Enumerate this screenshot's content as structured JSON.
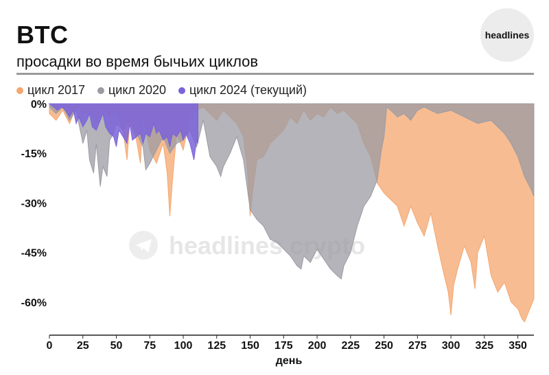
{
  "header": {
    "title": "BTC",
    "subtitle": "просадки во время бычьих циклов",
    "logo_text": "headlines"
  },
  "watermark": "headlines crypto",
  "legend": [
    {
      "label": "цикл 2017",
      "color": "#f4a66e"
    },
    {
      "label": "цикл 2020",
      "color": "#9b9ba3"
    },
    {
      "label": "цикл 2024 (текущий)",
      "color": "#7b63d9"
    }
  ],
  "chart_data": {
    "type": "area",
    "title": "BTC",
    "subtitle": "просадки во время бычьих циклов",
    "xlabel": "день",
    "ylabel": "",
    "xlim": [
      0,
      362
    ],
    "ylim": [
      -70,
      0
    ],
    "x_ticks": [
      0,
      25,
      50,
      75,
      100,
      125,
      150,
      175,
      200,
      225,
      250,
      275,
      300,
      325,
      350
    ],
    "y_ticks": [
      0,
      -15,
      -30,
      -45,
      -60
    ],
    "y_tick_labels": [
      "0%",
      "-15%",
      "-30%",
      "-45%",
      "-60%"
    ],
    "series": [
      {
        "name": "цикл 2017",
        "color": "#f4a66e",
        "points": [
          [
            0,
            -3
          ],
          [
            5,
            -5
          ],
          [
            10,
            -2
          ],
          [
            15,
            -6
          ],
          [
            20,
            -1
          ],
          [
            25,
            -3
          ],
          [
            30,
            -2
          ],
          [
            35,
            -6
          ],
          [
            40,
            -1
          ],
          [
            45,
            -4
          ],
          [
            50,
            -2
          ],
          [
            55,
            -8
          ],
          [
            58,
            -17
          ],
          [
            60,
            -6
          ],
          [
            65,
            -11
          ],
          [
            68,
            -18
          ],
          [
            70,
            -3
          ],
          [
            75,
            -14
          ],
          [
            80,
            -18
          ],
          [
            85,
            -12
          ],
          [
            88,
            -21
          ],
          [
            90,
            -34
          ],
          [
            92,
            -23
          ],
          [
            95,
            -9
          ],
          [
            100,
            -14
          ],
          [
            105,
            -4
          ],
          [
            110,
            -2
          ],
          [
            115,
            -1
          ],
          [
            120,
            -3
          ],
          [
            125,
            -5
          ],
          [
            130,
            -2
          ],
          [
            135,
            -4
          ],
          [
            140,
            -6
          ],
          [
            145,
            -10
          ],
          [
            148,
            -20
          ],
          [
            150,
            -34
          ],
          [
            152,
            -26
          ],
          [
            155,
            -17
          ],
          [
            160,
            -16
          ],
          [
            165,
            -12
          ],
          [
            170,
            -10
          ],
          [
            175,
            -8
          ],
          [
            180,
            -4
          ],
          [
            185,
            -6
          ],
          [
            190,
            -2
          ],
          [
            195,
            -5
          ],
          [
            200,
            -3
          ],
          [
            205,
            -4
          ],
          [
            210,
            -1
          ],
          [
            215,
            -3
          ],
          [
            220,
            -2
          ],
          [
            225,
            -4
          ],
          [
            230,
            -6
          ],
          [
            235,
            -12
          ],
          [
            240,
            -16
          ],
          [
            245,
            -24
          ],
          [
            250,
            -27
          ],
          [
            255,
            -29
          ],
          [
            260,
            -31
          ],
          [
            265,
            -37
          ],
          [
            270,
            -31
          ],
          [
            275,
            -36
          ],
          [
            280,
            -40
          ],
          [
            285,
            -33
          ],
          [
            290,
            -43
          ],
          [
            295,
            -52
          ],
          [
            298,
            -57
          ],
          [
            300,
            -64
          ],
          [
            302,
            -55
          ],
          [
            305,
            -50
          ],
          [
            310,
            -43
          ],
          [
            315,
            -48
          ],
          [
            318,
            -56
          ],
          [
            320,
            -45
          ],
          [
            325,
            -40
          ],
          [
            330,
            -52
          ],
          [
            335,
            -57
          ],
          [
            340,
            -54
          ],
          [
            345,
            -60
          ],
          [
            350,
            -62
          ],
          [
            353,
            -65
          ],
          [
            355,
            -66
          ],
          [
            358,
            -63
          ],
          [
            360,
            -61
          ],
          [
            362,
            -59
          ]
        ]
      },
      {
        "name": "цикл 2020",
        "color": "#9b9ba3",
        "points": [
          [
            0,
            -1
          ],
          [
            5,
            -3
          ],
          [
            10,
            -1
          ],
          [
            15,
            -5
          ],
          [
            20,
            -2
          ],
          [
            25,
            -12
          ],
          [
            28,
            -8
          ],
          [
            30,
            -17
          ],
          [
            33,
            -21
          ],
          [
            35,
            -12
          ],
          [
            38,
            -25
          ],
          [
            40,
            -19
          ],
          [
            43,
            -22
          ],
          [
            45,
            -11
          ],
          [
            48,
            -9
          ],
          [
            50,
            -6
          ],
          [
            55,
            -8
          ],
          [
            60,
            -5
          ],
          [
            65,
            -9
          ],
          [
            70,
            -13
          ],
          [
            72,
            -20
          ],
          [
            75,
            -18
          ],
          [
            80,
            -14
          ],
          [
            85,
            -10
          ],
          [
            90,
            -15
          ],
          [
            95,
            -12
          ],
          [
            100,
            -11
          ],
          [
            105,
            -8
          ],
          [
            110,
            -13
          ],
          [
            115,
            -5
          ],
          [
            120,
            -16
          ],
          [
            125,
            -19
          ],
          [
            128,
            -22
          ],
          [
            130,
            -19
          ],
          [
            135,
            -15
          ],
          [
            140,
            -10
          ],
          [
            145,
            -17
          ],
          [
            148,
            -26
          ],
          [
            150,
            -32
          ],
          [
            155,
            -35
          ],
          [
            160,
            -37
          ],
          [
            165,
            -41
          ],
          [
            170,
            -42
          ],
          [
            175,
            -44
          ],
          [
            180,
            -46
          ],
          [
            185,
            -49
          ],
          [
            188,
            -50
          ],
          [
            190,
            -46
          ],
          [
            195,
            -48
          ],
          [
            200,
            -44
          ],
          [
            205,
            -47
          ],
          [
            210,
            -50
          ],
          [
            215,
            -52
          ],
          [
            218,
            -53
          ],
          [
            220,
            -49
          ],
          [
            225,
            -45
          ],
          [
            230,
            -37
          ],
          [
            235,
            -31
          ],
          [
            240,
            -28
          ],
          [
            245,
            -23
          ],
          [
            248,
            -14
          ],
          [
            250,
            -10
          ],
          [
            252,
            -1
          ],
          [
            255,
            -2
          ],
          [
            260,
            -4
          ],
          [
            265,
            -3
          ],
          [
            270,
            -5
          ],
          [
            275,
            -2
          ],
          [
            280,
            -1
          ],
          [
            290,
            -3
          ],
          [
            300,
            -2
          ],
          [
            310,
            -4
          ],
          [
            320,
            -6
          ],
          [
            330,
            -5
          ],
          [
            340,
            -9
          ],
          [
            345,
            -12
          ],
          [
            350,
            -16
          ],
          [
            355,
            -22
          ],
          [
            360,
            -26
          ],
          [
            362,
            -28
          ]
        ]
      },
      {
        "name": "цикл 2024 (текущий)",
        "color": "#7b63d9",
        "points": [
          [
            0,
            0
          ],
          [
            3,
            -1
          ],
          [
            6,
            -2
          ],
          [
            9,
            -1
          ],
          [
            12,
            -2
          ],
          [
            15,
            -4
          ],
          [
            18,
            -2
          ],
          [
            20,
            -6
          ],
          [
            22,
            -4
          ],
          [
            25,
            -7
          ],
          [
            28,
            -5
          ],
          [
            30,
            -3
          ],
          [
            32,
            -7
          ],
          [
            35,
            -8
          ],
          [
            38,
            -5
          ],
          [
            40,
            -3
          ],
          [
            42,
            -7
          ],
          [
            45,
            -9
          ],
          [
            48,
            -10
          ],
          [
            50,
            -13
          ],
          [
            52,
            -8
          ],
          [
            55,
            -10
          ],
          [
            58,
            -12
          ],
          [
            60,
            -6
          ],
          [
            62,
            -11
          ],
          [
            65,
            -10
          ],
          [
            68,
            -9
          ],
          [
            70,
            -12
          ],
          [
            72,
            -9
          ],
          [
            75,
            -10
          ],
          [
            78,
            -6
          ],
          [
            80,
            -9
          ],
          [
            82,
            -8
          ],
          [
            85,
            -11
          ],
          [
            88,
            -10
          ],
          [
            90,
            -13
          ],
          [
            92,
            -9
          ],
          [
            95,
            -10
          ],
          [
            98,
            -8
          ],
          [
            100,
            -11
          ],
          [
            102,
            -9
          ],
          [
            105,
            -12
          ],
          [
            108,
            -17
          ],
          [
            110,
            -11
          ],
          [
            111,
            -12
          ]
        ]
      }
    ]
  }
}
